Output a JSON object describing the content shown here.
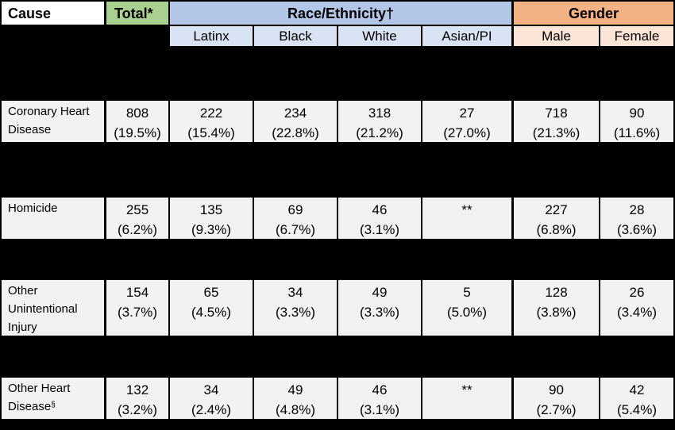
{
  "headers": {
    "cause": "Cause",
    "total": "Total*",
    "race_group": "Race/Ethnicity†",
    "gender_group": "Gender",
    "latinx": "Latinx",
    "black": "Black",
    "white": "White",
    "asian_pi": "Asian/PI",
    "male": "Male",
    "female": "Female"
  },
  "rows": [
    {
      "cause_lines": [
        "Coronary Heart",
        "Disease"
      ],
      "cause_sup": "",
      "total": [
        "808",
        "(19.5%)"
      ],
      "latinx": [
        "222",
        "(15.4%)"
      ],
      "black": [
        "234",
        "(22.8%)"
      ],
      "white": [
        "318",
        "(21.2%)"
      ],
      "asian_pi": [
        "27",
        "(27.0%)"
      ],
      "male": [
        "718",
        "(21.3%)"
      ],
      "female": [
        "90",
        "(11.6%)"
      ]
    },
    {
      "cause_lines": [
        "Homicide"
      ],
      "cause_sup": "",
      "total": [
        "255",
        "(6.2%)"
      ],
      "latinx": [
        "135",
        "(9.3%)"
      ],
      "black": [
        "69",
        "(6.7%)"
      ],
      "white": [
        "46",
        "(3.1%)"
      ],
      "asian_pi": [
        "**",
        ""
      ],
      "male": [
        "227",
        "(6.8%)"
      ],
      "female": [
        "28",
        "(3.6%)"
      ]
    },
    {
      "cause_lines": [
        "Other",
        "Unintentional",
        "Injury"
      ],
      "cause_sup": "",
      "total": [
        "154",
        "(3.7%)"
      ],
      "latinx": [
        "65",
        "(4.5%)"
      ],
      "black": [
        "34",
        "(3.3%)"
      ],
      "white": [
        "49",
        "(3.3%)"
      ],
      "asian_pi": [
        "5",
        "(5.0%)"
      ],
      "male": [
        "128",
        "(3.8%)"
      ],
      "female": [
        "26",
        "(3.4%)"
      ]
    },
    {
      "cause_lines": [
        "Other Heart",
        "Disease"
      ],
      "cause_sup": "§",
      "total": [
        "132",
        "(3.2%)"
      ],
      "latinx": [
        "34",
        "(2.4%)"
      ],
      "black": [
        "49",
        "(4.8%)"
      ],
      "white": [
        "46",
        "(3.1%)"
      ],
      "asian_pi": [
        "**",
        ""
      ],
      "male": [
        "90",
        "(2.7%)"
      ],
      "female": [
        "42",
        "(5.4%)"
      ]
    }
  ]
}
